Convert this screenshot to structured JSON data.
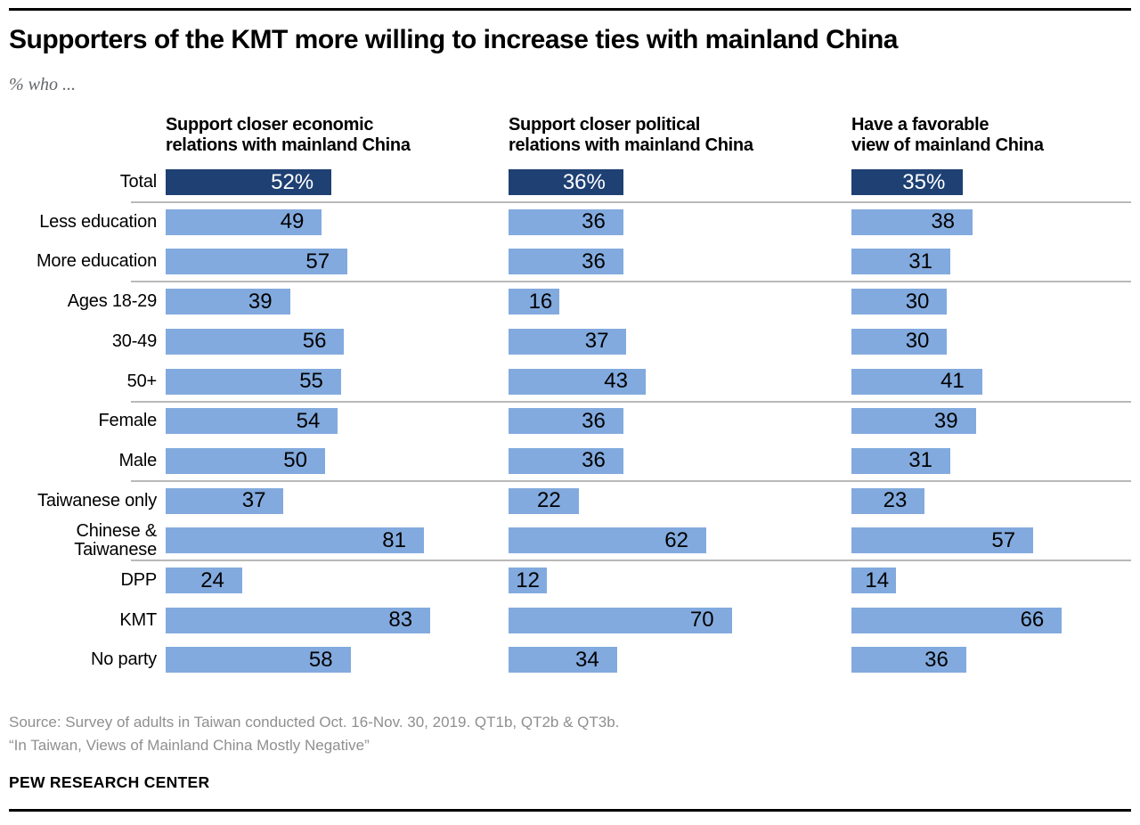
{
  "header": {
    "title": "Supporters of the KMT more willing to increase ties with mainland China",
    "subtitle": "% who ..."
  },
  "columns": [
    "Support closer economic\nrelations with mainland China",
    "Support closer political\nrelations with mainland China",
    "Have a favorable\nview of mainland China"
  ],
  "chart_data": {
    "type": "bar",
    "orientation": "horizontal",
    "unit": "%",
    "xlim": [
      0,
      100
    ],
    "categories": [
      "Total",
      "Less education",
      "More education",
      "Ages 18-29",
      "30-49",
      "50+",
      "Female",
      "Male",
      "Taiwanese only",
      "Chinese &\nTaiwanese",
      "DPP",
      "KMT",
      "No party"
    ],
    "series": [
      {
        "key": "economic",
        "name": "Support closer economic relations with mainland China",
        "values": [
          52,
          49,
          57,
          39,
          56,
          55,
          54,
          50,
          37,
          81,
          24,
          83,
          58
        ]
      },
      {
        "key": "political",
        "name": "Support closer political relations with mainland China",
        "values": [
          36,
          36,
          36,
          16,
          37,
          43,
          36,
          36,
          22,
          62,
          12,
          70,
          34
        ]
      },
      {
        "key": "favorable",
        "name": "Have a favorable view of mainland China",
        "values": [
          35,
          38,
          31,
          30,
          30,
          41,
          39,
          31,
          23,
          57,
          14,
          66,
          36
        ]
      }
    ],
    "total_row_label_suffix": "%",
    "group_separators_after_rows": [
      0,
      2,
      5,
      7,
      9
    ],
    "colors": {
      "total_bar": "#1e4073",
      "bar": "#82aade",
      "value_text": "#000000",
      "total_value_text": "#ffffff",
      "separator": "#b9b9b9"
    }
  },
  "footer": {
    "source_line1": "Source: Survey of adults in Taiwan conducted Oct. 16-Nov. 30, 2019. QT1b, QT2b & QT3b.",
    "source_line2": "“In Taiwan, Views of Mainland China Mostly Negative”",
    "brand": "PEW RESEARCH CENTER"
  }
}
